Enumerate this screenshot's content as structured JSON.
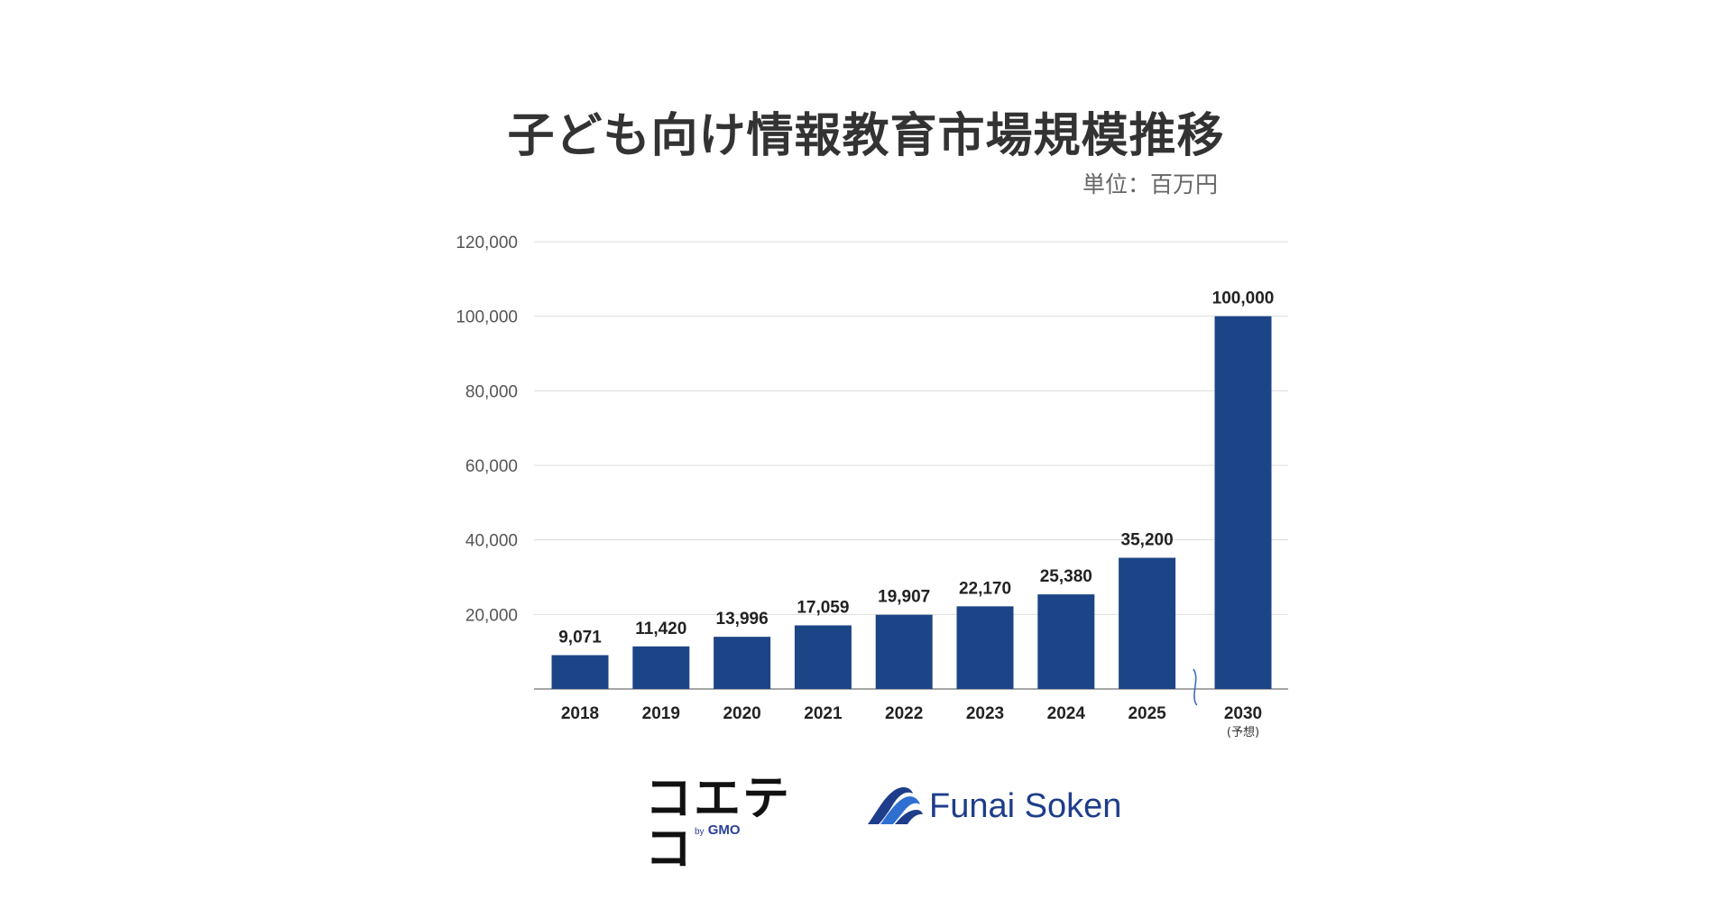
{
  "chart_data": {
    "type": "bar",
    "title": "子ども向け情報教育市場規模推移",
    "unit": "単位：百万円",
    "categories": [
      "2018",
      "2019",
      "2020",
      "2021",
      "2022",
      "2023",
      "2024",
      "2025",
      "2030"
    ],
    "category_notes": [
      "",
      "",
      "",
      "",
      "",
      "",
      "",
      "",
      "(予想)"
    ],
    "values": [
      9071,
      11420,
      13996,
      17059,
      19907,
      22170,
      25380,
      35200,
      100000
    ],
    "value_labels": [
      "9,071",
      "11,420",
      "13,996",
      "17,059",
      "19,907",
      "22,170",
      "25,380",
      "35,200",
      "100,000"
    ],
    "yticks": [
      20000,
      40000,
      60000,
      80000,
      100000,
      120000
    ],
    "ytick_labels": [
      "20,000",
      "40,000",
      "60,000",
      "80,000",
      "100,000",
      "120,000"
    ],
    "ylim": [
      0,
      120000
    ],
    "grid": true,
    "axis_break_between": [
      "2025",
      "2030"
    ],
    "bar_color": "#1c4587",
    "grid_color": "#dcdcdc"
  },
  "logos": {
    "koeteko": "コエテコ",
    "by": "by",
    "gmo": "GMO",
    "funai": "Funai Soken"
  }
}
